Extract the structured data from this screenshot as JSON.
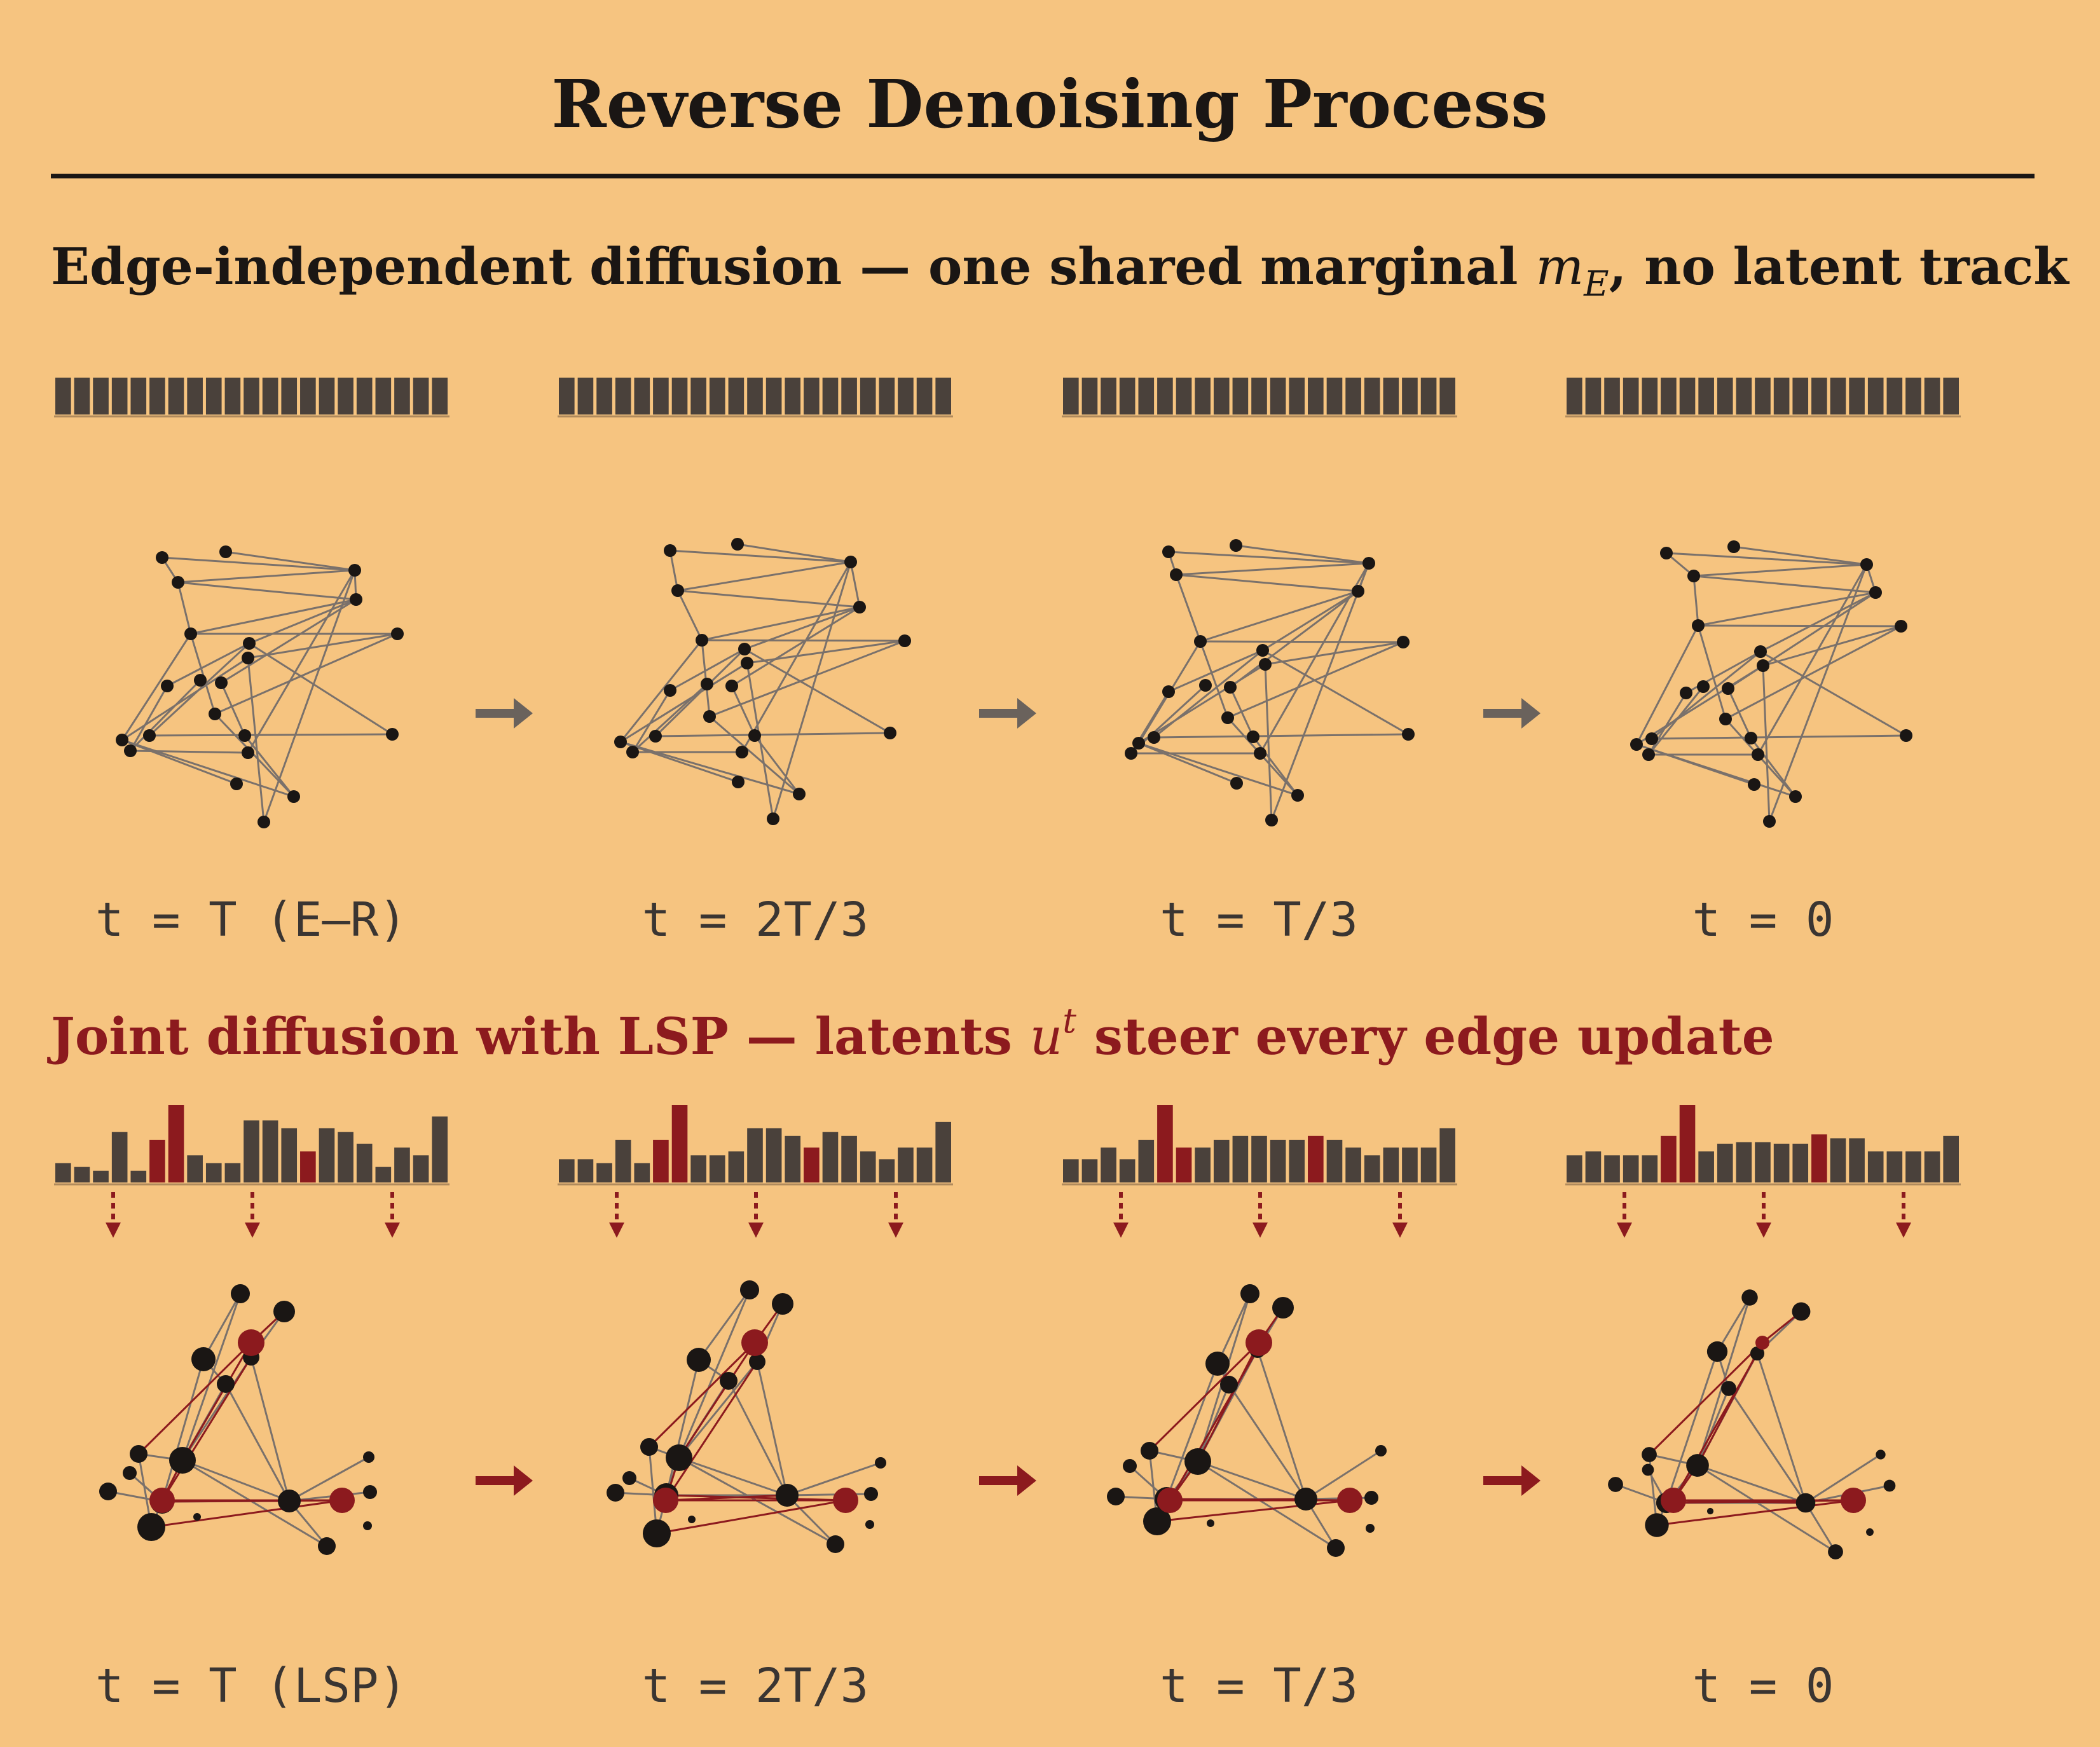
{
  "title": "Reverse Denoising Process",
  "section1": {
    "text": "Edge-independent diffusion — one shared marginal ",
    "math_symbol": "m",
    "math_subscript": "E",
    "suffix": ", no latent track"
  },
  "section2": {
    "text": "Joint diffusion with LSP — latents ",
    "math_symbol": "u",
    "math_superscript": "t",
    "suffix": " steer every edge update"
  },
  "row1_labels": [
    "t = T (E–R)",
    "t = 2T/3",
    "t = T/3",
    "t = 0"
  ],
  "row2_labels": [
    "t = T (LSP)",
    "t = 2T/3",
    "t = T/3",
    "t = 0"
  ],
  "colors": {
    "background": "#f6c480",
    "ink": "#1a1614",
    "bar_dark": "#4a413b",
    "accent_red": "#8c1a1e",
    "edge_gray": "#7a716b",
    "arrow_gray": "#6a625c"
  },
  "row1_latent_bars": [
    [
      1,
      1,
      1,
      1,
      1,
      1,
      1,
      1,
      1,
      1,
      1,
      1,
      1,
      1,
      1,
      1,
      1,
      1,
      1,
      1,
      1
    ],
    [
      1,
      1,
      1,
      1,
      1,
      1,
      1,
      1,
      1,
      1,
      1,
      1,
      1,
      1,
      1,
      1,
      1,
      1,
      1,
      1,
      1
    ],
    [
      1,
      1,
      1,
      1,
      1,
      1,
      1,
      1,
      1,
      1,
      1,
      1,
      1,
      1,
      1,
      1,
      1,
      1,
      1,
      1,
      1
    ],
    [
      1,
      1,
      1,
      1,
      1,
      1,
      1,
      1,
      1,
      1,
      1,
      1,
      1,
      1,
      1,
      1,
      1,
      1,
      1,
      1,
      1
    ]
  ],
  "row2_latent_bars": [
    {
      "values": [
        0.25,
        0.2,
        0.15,
        0.65,
        0.15,
        0.55,
        1.0,
        0.35,
        0.25,
        0.25,
        0.8,
        0.8,
        0.7,
        0.4,
        0.7,
        0.65,
        0.5,
        0.2,
        0.45,
        0.35,
        0.85
      ],
      "red": [
        5,
        6,
        13
      ]
    },
    {
      "values": [
        0.3,
        0.3,
        0.25,
        0.55,
        0.25,
        0.55,
        1.0,
        0.35,
        0.35,
        0.4,
        0.7,
        0.7,
        0.6,
        0.45,
        0.65,
        0.6,
        0.4,
        0.3,
        0.45,
        0.45,
        0.78
      ],
      "red": [
        5,
        6,
        13
      ]
    },
    {
      "values": [
        0.3,
        0.3,
        0.45,
        0.3,
        0.55,
        1.0,
        0.45,
        0.45,
        0.55,
        0.6,
        0.6,
        0.55,
        0.55,
        0.6,
        0.55,
        0.45,
        0.35,
        0.45,
        0.45,
        0.45,
        0.7
      ],
      "red": [
        5,
        6,
        13
      ]
    },
    {
      "values": [
        0.35,
        0.4,
        0.35,
        0.35,
        0.35,
        0.6,
        1.0,
        0.4,
        0.5,
        0.52,
        0.52,
        0.5,
        0.5,
        0.62,
        0.57,
        0.57,
        0.4,
        0.4,
        0.4,
        0.4,
        0.6
      ],
      "red": [
        5,
        6,
        13
      ]
    }
  ]
}
